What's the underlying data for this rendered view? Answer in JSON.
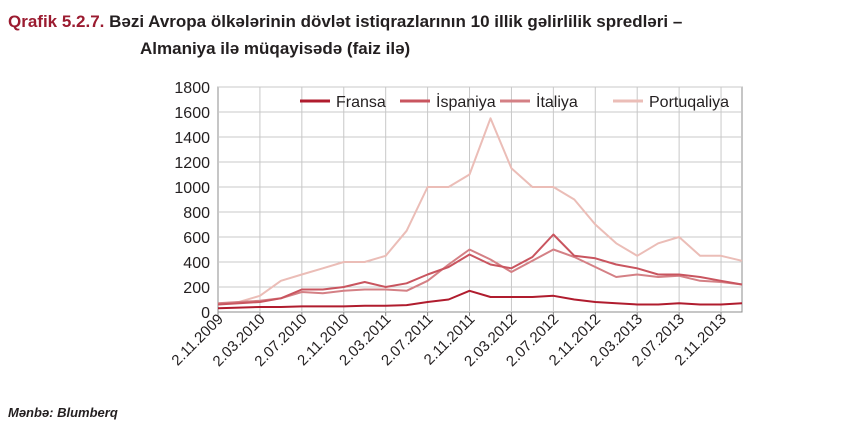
{
  "title": {
    "prefix": "Qrafik 5.2.7.",
    "text_line1": "Bəzi Avropa ölkələrinin dövlət istiqrazlarının 10 illik gəlirlilik spredləri –",
    "text_line2": "Almaniya ilə müqayisədə (faiz ilə)"
  },
  "source": "Mənbə: Blumberq",
  "chart_data": {
    "type": "line",
    "x": [
      "2.11.2009",
      "2.01.2010",
      "2.03.2010",
      "2.05.2010",
      "2.07.2010",
      "2.09.2010",
      "2.11.2010",
      "2.01.2011",
      "2.03.2011",
      "2.05.2011",
      "2.07.2011",
      "2.09.2011",
      "2.11.2011",
      "2.01.2012",
      "2.03.2012",
      "2.05.2012",
      "2.07.2012",
      "2.09.2012",
      "2.11.2012",
      "2.01.2013",
      "2.03.2013",
      "2.05.2013",
      "2.07.2013",
      "2.09.2013",
      "2.11.2013",
      "2.01.2014"
    ],
    "x_tick_labels": [
      "2.11.2009",
      "2.03.2010",
      "2.07.2010",
      "2.11.2010",
      "2.03.2011",
      "2.07.2011",
      "2.11.2011",
      "2.03.2012",
      "2.07.2012",
      "2.11.2012",
      "2.03.2013",
      "2.07.2013",
      "2.11.2013"
    ],
    "ylim": [
      0,
      1800
    ],
    "y_ticks": [
      0,
      200,
      400,
      600,
      800,
      1000,
      1200,
      1400,
      1600,
      1800
    ],
    "grid": true,
    "legend_position": "top",
    "series": [
      {
        "name": "Fransa",
        "color": "#b01c2e",
        "values": [
          30,
          35,
          40,
          40,
          45,
          45,
          45,
          50,
          50,
          55,
          80,
          100,
          170,
          120,
          120,
          120,
          130,
          100,
          80,
          70,
          60,
          60,
          70,
          60,
          60,
          70
        ]
      },
      {
        "name": "İspaniya",
        "color": "#c9555f",
        "values": [
          60,
          70,
          80,
          110,
          180,
          180,
          200,
          240,
          200,
          230,
          300,
          360,
          460,
          380,
          350,
          440,
          620,
          450,
          430,
          380,
          350,
          300,
          300,
          280,
          250,
          220
        ]
      },
      {
        "name": "İtaliya",
        "color": "#d48085",
        "values": [
          70,
          80,
          90,
          110,
          160,
          150,
          170,
          180,
          180,
          170,
          250,
          380,
          500,
          420,
          320,
          410,
          500,
          440,
          360,
          280,
          300,
          280,
          290,
          250,
          240,
          220
        ]
      },
      {
        "name": "Portuqaliya",
        "color": "#ebbdb7",
        "values": [
          60,
          80,
          130,
          250,
          300,
          350,
          400,
          400,
          450,
          650,
          1000,
          1000,
          1100,
          1550,
          1150,
          1000,
          1000,
          900,
          700,
          550,
          450,
          550,
          600,
          450,
          450,
          410
        ]
      }
    ]
  }
}
